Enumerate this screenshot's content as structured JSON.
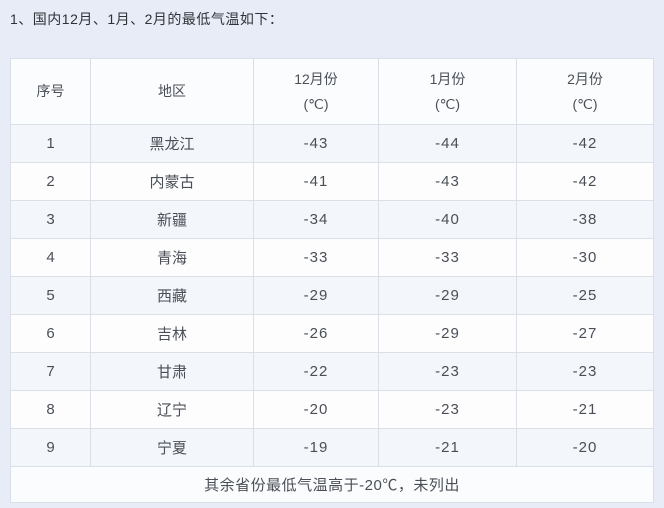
{
  "title": "1、国内12月、1月、2月的最低气温如下：",
  "table": {
    "headers": {
      "index": "序号",
      "region": "地区",
      "dec": "12月份",
      "jan": "1月份",
      "feb": "2月份",
      "unit": "(℃)"
    },
    "rows": [
      {
        "no": "1",
        "region": "黑龙江",
        "dec": "-43",
        "jan": "-44",
        "feb": "-42"
      },
      {
        "no": "2",
        "region": "内蒙古",
        "dec": "-41",
        "jan": "-43",
        "feb": "-42"
      },
      {
        "no": "3",
        "region": "新疆",
        "dec": "-34",
        "jan": "-40",
        "feb": "-38"
      },
      {
        "no": "4",
        "region": "青海",
        "dec": "-33",
        "jan": "-33",
        "feb": "-30"
      },
      {
        "no": "5",
        "region": "西藏",
        "dec": "-29",
        "jan": "-29",
        "feb": "-25"
      },
      {
        "no": "6",
        "region": "吉林",
        "dec": "-26",
        "jan": "-29",
        "feb": "-27"
      },
      {
        "no": "7",
        "region": "甘肃",
        "dec": "-22",
        "jan": "-23",
        "feb": "-23"
      },
      {
        "no": "8",
        "region": "辽宁",
        "dec": "-20",
        "jan": "-23",
        "feb": "-21"
      },
      {
        "no": "9",
        "region": "宁夏",
        "dec": "-19",
        "jan": "-21",
        "feb": "-20"
      }
    ],
    "footer_note": "其余省份最低气温高于-20℃，未列出"
  },
  "chart_data": {
    "type": "table",
    "columns": [
      "序号",
      "地区",
      "12月份(℃)",
      "1月份(℃)",
      "2月份(℃)"
    ],
    "rows": [
      [
        1,
        "黑龙江",
        -43,
        -44,
        -42
      ],
      [
        2,
        "内蒙古",
        -41,
        -43,
        -42
      ],
      [
        3,
        "新疆",
        -34,
        -40,
        -38
      ],
      [
        4,
        "青海",
        -33,
        -33,
        -30
      ],
      [
        5,
        "西藏",
        -29,
        -29,
        -25
      ],
      [
        6,
        "吉林",
        -26,
        -29,
        -27
      ],
      [
        7,
        "甘肃",
        -22,
        -23,
        -23
      ],
      [
        8,
        "辽宁",
        -20,
        -23,
        -21
      ],
      [
        9,
        "宁夏",
        -19,
        -21,
        -20
      ]
    ],
    "footnote": "其余省份最低气温高于-20℃，未列出"
  },
  "colors": {
    "page_background": "#e8ecf7",
    "cell_background": "#fbfcfd",
    "stripe_background": "#f3f6fb",
    "border": "#dbdfe8",
    "text": "#4a4f57"
  }
}
